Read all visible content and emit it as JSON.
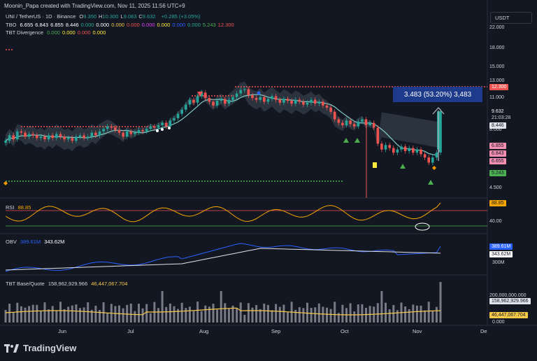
{
  "header": {
    "creator": "Moonin_Papa created with TradingView.com, Nov 11, 2025 11:56 UTC+9"
  },
  "legend": {
    "symbol": "UNI / TetherUS · 1D · Binance",
    "ohlc": [
      {
        "k": "O",
        "v": "9.350"
      },
      {
        "k": "H",
        "v": "10.300"
      },
      {
        "k": "L",
        "v": "9.083"
      },
      {
        "k": "C",
        "v": "9.632"
      }
    ],
    "change": "+0.285 (+3.05%)",
    "tbo": {
      "label": "TBO",
      "values": [
        {
          "v": "6.655",
          "c": "#ffffff"
        },
        {
          "v": "6.843",
          "c": "#ffffff"
        },
        {
          "v": "6.855",
          "c": "#ffffff"
        },
        {
          "v": "8.446",
          "c": "#ffffff"
        },
        {
          "v": "0.000",
          "c": "#26a69a"
        },
        {
          "v": "0.000",
          "c": "#ffffff"
        },
        {
          "v": "0.000",
          "c": "#f7c948"
        },
        {
          "v": "0.000",
          "c": "#ef5350"
        },
        {
          "v": "0.000",
          "c": "#e040fb"
        },
        {
          "v": "0.000",
          "c": "#ffeb3b"
        },
        {
          "v": "0.000",
          "c": "#2962ff"
        },
        {
          "v": "0.000",
          "c": "#26a69a"
        },
        {
          "v": "5.243",
          "c": "#4caf50"
        },
        {
          "v": "12.300",
          "c": "#ef5350"
        }
      ]
    },
    "divergence": {
      "label": "TBT Divergence",
      "values": [
        {
          "v": "0.000",
          "c": "#4caf50"
        },
        {
          "v": "0.000",
          "c": "#ffeb3b"
        },
        {
          "v": "0.000",
          "c": "#ef5350"
        },
        {
          "v": "0.000",
          "c": "#ffeb3b"
        }
      ]
    }
  },
  "currency_button": "USDT",
  "measure_label": "3.483 (53.20%) 3,483",
  "price_axis": [
    "22.000",
    "18.000",
    "15.000",
    "13.000",
    "11.000",
    "8.000",
    "4.500"
  ],
  "price_tags": [
    {
      "v": "12.300",
      "bg": "#ef5350",
      "fg": "#ffffff"
    },
    {
      "v": "9.632",
      "bg": "#131722",
      "fg": "#ffffff"
    },
    {
      "v": "21:03:28",
      "bg": "#131722",
      "fg": "#d1d4dc"
    },
    {
      "v": "8.446",
      "bg": "#e1e3ea",
      "fg": "#131722"
    },
    {
      "v": "6.855",
      "bg": "#f48fb1",
      "fg": "#131722"
    },
    {
      "v": "6.843",
      "bg": "#f48fb1",
      "fg": "#131722"
    },
    {
      "v": "6.655",
      "bg": "#f48fb1",
      "fg": "#131722"
    },
    {
      "v": "5.243",
      "bg": "#4caf50",
      "fg": "#131722"
    }
  ],
  "rsi": {
    "label": "RSI",
    "value": "88.85",
    "axis": [
      "40.00"
    ],
    "tag": "88.85",
    "tag_bg": "#f7a600"
  },
  "obv": {
    "label": "OBV",
    "v1": "389.61M",
    "v2": "343.62M",
    "axis": [
      "300M"
    ],
    "tag1": "389.61M",
    "tag2": "343.62M"
  },
  "tbt": {
    "label": "TBT Base/Quote",
    "v1": "158,962,929.966",
    "v2": "46,447,067.704",
    "axis": [
      "200,000,000.000",
      "0.000"
    ],
    "tag1": "158,962,929.966",
    "tag2": "46,447,067.704"
  },
  "time_axis": [
    "Jun",
    "Jul",
    "Aug",
    "Sep",
    "Oct",
    "Nov",
    "De"
  ],
  "brand": "TradingView",
  "colors": {
    "bg": "#131722",
    "up": "#26a69a",
    "down": "#ef5350",
    "rsi": "#f7a600",
    "obv": "#2962ff"
  },
  "chart_data": {
    "type": "candlestick",
    "symbol": "UNI / TetherUS",
    "interval": "1D",
    "x_labels": [
      "Jun",
      "Jul",
      "Aug",
      "Sep",
      "Oct",
      "Nov",
      "De"
    ],
    "y_ticks": [
      4.5,
      8,
      11,
      13,
      15,
      18,
      22
    ],
    "last_close": 9.632,
    "levels": {
      "resistance": 12.3,
      "support": 5.243,
      "tbo_fast": 8.446
    },
    "series_close": [
      7.2,
      7.6,
      7.3,
      7.9,
      7.8,
      7.5,
      7.7,
      7.6,
      7.4,
      7.5,
      7.3,
      7.6,
      7.4,
      7.7,
      7.5,
      7.3,
      7.4,
      7.2,
      7.5,
      7.6,
      7.4,
      7.5,
      7.8,
      7.6,
      7.9,
      8.1,
      8.3,
      8.2,
      8.0,
      7.8,
      7.5,
      7.9,
      7.7,
      7.8,
      8.0,
      7.9,
      8.1,
      8.3,
      8.2,
      8.4,
      8.6,
      8.3,
      8.8,
      9.0,
      9.4,
      9.8,
      10.3,
      10.8,
      10.5,
      11.2,
      11.6,
      11.0,
      10.6,
      10.2,
      10.7,
      10.9,
      10.4,
      10.8,
      11.1,
      11.5,
      11.9,
      12.0,
      11.3,
      11.0,
      10.8,
      11.1,
      10.6,
      10.9,
      11.2,
      10.8,
      10.5,
      10.9,
      10.7,
      10.4,
      10.8,
      10.6,
      10.3,
      10.5,
      10.8,
      10.4,
      10.6,
      10.2,
      10.0,
      9.6,
      8.9,
      8.6,
      8.4,
      8.8,
      8.5,
      8.3,
      8.7,
      8.9,
      8.4,
      8.6,
      8.2,
      7.0,
      6.6,
      6.9,
      6.7,
      6.4,
      6.6,
      6.8,
      6.5,
      6.7,
      6.4,
      6.6,
      6.3,
      6.1,
      5.8,
      6.1,
      6.4,
      9.632
    ],
    "rsi_last": 88.85,
    "obv_last": 389.61,
    "obv_ma_last": 343.62,
    "volume_last": 158962929.966,
    "volume_ma_last": 46447067.704
  }
}
